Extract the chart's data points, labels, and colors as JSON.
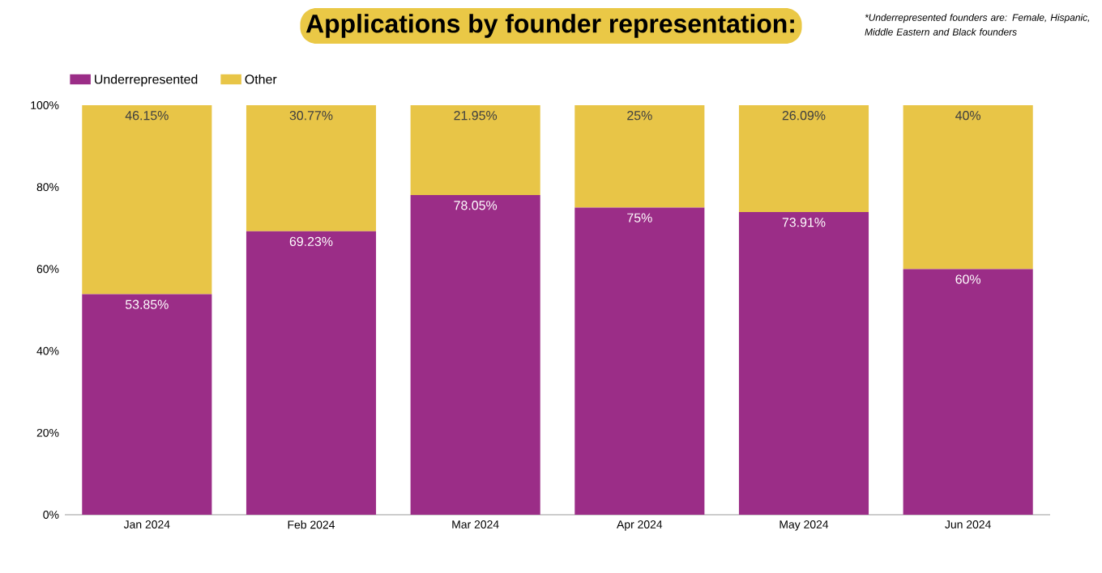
{
  "chart_data": {
    "type": "bar",
    "stacked": true,
    "title": "Applications by founder representation:",
    "annotations": [
      "*Underrepresented founders are: Female, Hispanic, Middle Eastern  and Black founders"
    ],
    "categories": [
      "Jan 2024",
      "Feb 2024",
      "Mar 2024",
      "Apr 2024",
      "May 2024",
      "Jun 2024"
    ],
    "series": [
      {
        "name": "Underrepresented",
        "color": "#9b2d87",
        "values": [
          53.85,
          69.23,
          78.05,
          75,
          73.91,
          60
        ],
        "value_labels": [
          "53.85%",
          "69.23%",
          "78.05%",
          "75%",
          "73.91%",
          "60%"
        ]
      },
      {
        "name": "Other",
        "color": "#e8c547",
        "values": [
          46.15,
          30.77,
          21.95,
          25,
          26.09,
          40
        ],
        "value_labels": [
          "46.15%",
          "30.77%",
          "21.95%",
          "25%",
          "26.09%",
          "40%"
        ]
      }
    ],
    "ylim": [
      0,
      100
    ],
    "yticks": [
      {
        "value": 0,
        "label": "0%"
      },
      {
        "value": 20,
        "label": "20%"
      },
      {
        "value": 40,
        "label": "40%"
      },
      {
        "value": 60,
        "label": "60%"
      },
      {
        "value": 80,
        "label": "80%"
      },
      {
        "value": 100,
        "label": "100%"
      }
    ],
    "grid": false,
    "legend": "top left"
  }
}
